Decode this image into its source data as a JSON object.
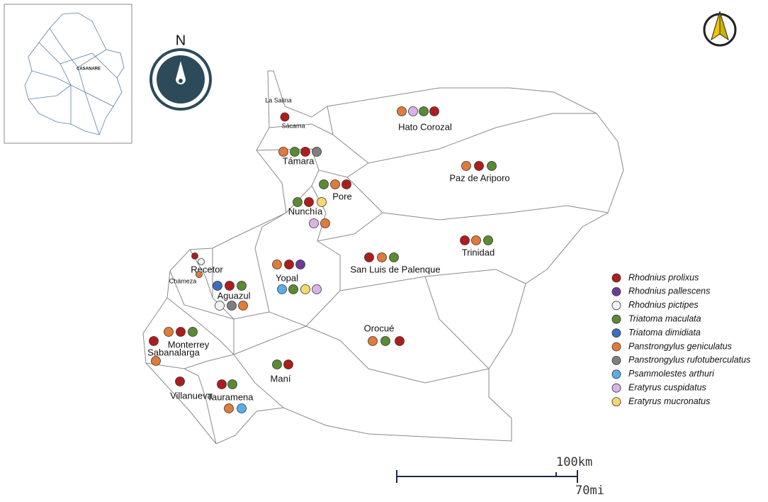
{
  "inset_label": "CASANARE",
  "north_label": "N",
  "legend": [
    {
      "name": "Rhodnius prolixus",
      "color": "#b01c1c"
    },
    {
      "name": "Rhodnius pallescens",
      "color": "#6a3d9a"
    },
    {
      "name": "Rhodnius pictipes",
      "color": "#eef3f5"
    },
    {
      "name": "Triatoma maculata",
      "color": "#5b8a32"
    },
    {
      "name": "Triatoma dimidiata",
      "color": "#3a6fc4"
    },
    {
      "name": "Panstrongylus geniculatus",
      "color": "#e07b39"
    },
    {
      "name": "Panstrongylus rufotuberculatus",
      "color": "#7f7f7f"
    },
    {
      "name": "Psammolestes arthuri",
      "color": "#5aaee8"
    },
    {
      "name": "Eratyrus cuspidatus",
      "color": "#d9b3e8"
    },
    {
      "name": "Eratyrus mucronatus",
      "color": "#f5d96b"
    }
  ],
  "places": [
    {
      "label": "La Salina",
      "species": []
    },
    {
      "label": "Sácama",
      "species": [
        0
      ]
    },
    {
      "label": "Hato Corozal",
      "species": [
        5,
        8,
        3,
        0
      ]
    },
    {
      "label": "Támara",
      "species": [
        5,
        3,
        0,
        6
      ]
    },
    {
      "label": "Paz de Ariporo",
      "species": [
        5,
        0,
        3
      ]
    },
    {
      "label": "Pore",
      "species": [
        3,
        5,
        0
      ]
    },
    {
      "label": "Nunchía",
      "species": [
        3,
        0,
        9,
        8,
        5
      ]
    },
    {
      "label": "Trinidad",
      "species": [
        0,
        5,
        3
      ]
    },
    {
      "label": "San Luis de Palenque",
      "species": [
        0,
        5,
        3
      ]
    },
    {
      "label": "Recetor",
      "species": [
        0,
        2
      ]
    },
    {
      "label": "Chámeza",
      "species": [
        5
      ]
    },
    {
      "label": "Yopal",
      "species": [
        5,
        0,
        1,
        7,
        3,
        9,
        8
      ]
    },
    {
      "label": "Aguazul",
      "species": [
        4,
        0,
        3,
        2,
        6,
        5
      ]
    },
    {
      "label": "Orocué",
      "species": [
        5,
        3,
        0
      ]
    },
    {
      "label": "Monterrey",
      "species": [
        5,
        0,
        3
      ]
    },
    {
      "label": "Sabanalarga",
      "species": [
        0,
        5
      ]
    },
    {
      "label": "Maní",
      "species": [
        3,
        0
      ]
    },
    {
      "label": "Villanueva",
      "species": [
        0
      ]
    },
    {
      "label": "Tauramena",
      "species": [
        0,
        3,
        5,
        7
      ]
    }
  ],
  "scale": {
    "km": "100km",
    "mi": "70mi"
  }
}
